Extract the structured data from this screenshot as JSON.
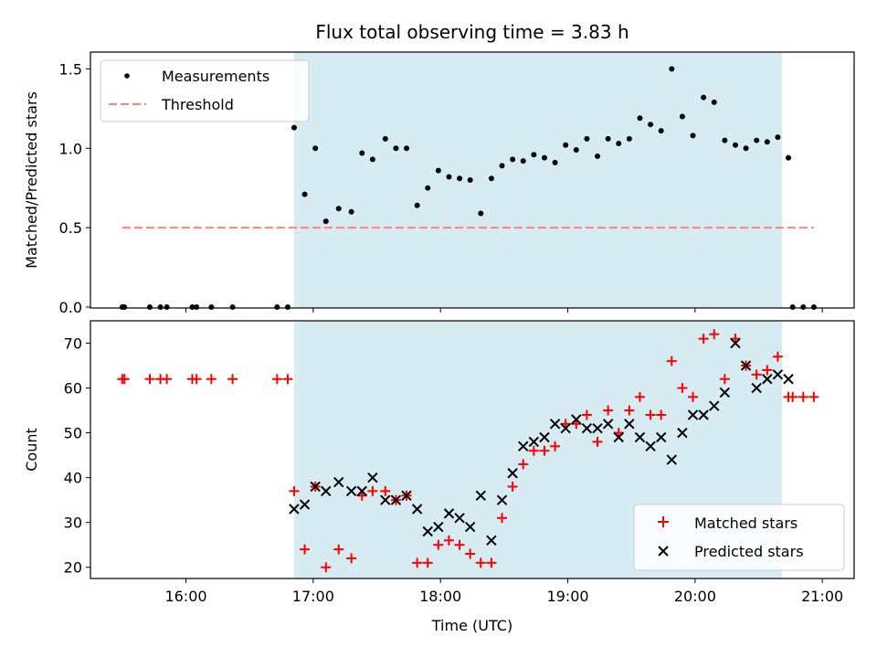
{
  "title": "Flux total observing time = 3.83 h",
  "colors": {
    "shade": "#add8e6",
    "threshold": "#ff7f7f",
    "measurements": "#000000",
    "matched": "#ff0000",
    "predicted": "#000000"
  },
  "chart_data": [
    {
      "type": "scatter",
      "ylabel": "Matched/Predicted stars",
      "ylim": [
        0,
        1.6
      ],
      "yticks": [
        0.0,
        0.5,
        1.0,
        1.5
      ],
      "ytick_labels": [
        "0.0",
        "0.5",
        "1.0",
        "1.5"
      ],
      "xlim": [
        "15:15",
        "21:15"
      ],
      "shaded_interval": [
        "16:51",
        "20:41"
      ],
      "legend": {
        "location": "upper left",
        "labels": [
          "Measurements",
          "Threshold"
        ]
      },
      "threshold": {
        "name": "Threshold",
        "y": 0.5,
        "x_range": [
          "15:30",
          "20:56"
        ]
      },
      "series": [
        {
          "name": "Measurements",
          "marker": "dot",
          "x": [
            "15:30",
            "15:31",
            "15:43",
            "15:48",
            "15:51",
            "16:03",
            "16:05",
            "16:12",
            "16:22",
            "16:43",
            "16:48",
            "16:51",
            "16:56",
            "17:01",
            "17:06",
            "17:12",
            "17:18",
            "17:23",
            "17:28",
            "17:34",
            "17:39",
            "17:44",
            "17:49",
            "17:54",
            "17:59",
            "18:04",
            "18:09",
            "18:14",
            "18:19",
            "18:24",
            "18:29",
            "18:34",
            "18:39",
            "18:44",
            "18:49",
            "18:54",
            "18:59",
            "19:04",
            "19:09",
            "19:14",
            "19:19",
            "19:24",
            "19:29",
            "19:34",
            "19:39",
            "19:44",
            "19:49",
            "19:54",
            "19:59",
            "20:04",
            "20:09",
            "20:14",
            "20:19",
            "20:24",
            "20:29",
            "20:34",
            "20:39",
            "20:44",
            "20:46",
            "20:51",
            "20:56"
          ],
          "y": [
            0,
            0,
            0,
            0,
            0,
            0,
            0,
            0,
            0,
            0,
            0,
            1.13,
            0.71,
            1.0,
            0.54,
            0.62,
            0.6,
            0.97,
            0.93,
            1.06,
            1.0,
            1.0,
            0.64,
            0.75,
            0.86,
            0.82,
            0.81,
            0.8,
            0.59,
            0.81,
            0.89,
            0.93,
            0.92,
            0.96,
            0.94,
            0.91,
            1.02,
            0.99,
            1.06,
            0.95,
            1.06,
            1.03,
            1.06,
            1.19,
            1.15,
            1.11,
            1.5,
            1.2,
            1.08,
            1.32,
            1.29,
            1.05,
            1.02,
            1.0,
            1.05,
            1.04,
            1.07,
            0.94,
            0,
            0,
            0
          ]
        }
      ]
    },
    {
      "type": "scatter",
      "xlabel": "Time (UTC)",
      "ylabel": "Count",
      "ylim": [
        17.5,
        75
      ],
      "yticks": [
        20,
        30,
        40,
        50,
        60,
        70
      ],
      "ytick_labels": [
        "20",
        "30",
        "40",
        "50",
        "60",
        "70"
      ],
      "xlim": [
        "15:15",
        "21:15"
      ],
      "xticks": [
        "16:00",
        "17:00",
        "18:00",
        "19:00",
        "20:00",
        "21:00"
      ],
      "xtick_labels": [
        "16:00",
        "17:00",
        "18:00",
        "19:00",
        "20:00",
        "21:00"
      ],
      "shaded_interval": [
        "16:51",
        "20:41"
      ],
      "legend": {
        "location": "lower right",
        "labels": [
          "Matched stars",
          "Predicted stars"
        ]
      },
      "series": [
        {
          "name": "Matched stars",
          "marker": "plus",
          "x": [
            "15:30",
            "15:31",
            "15:43",
            "15:48",
            "15:51",
            "16:03",
            "16:05",
            "16:12",
            "16:22",
            "16:43",
            "16:48",
            "16:51",
            "16:56",
            "17:01",
            "17:06",
            "17:12",
            "17:18",
            "17:23",
            "17:28",
            "17:34",
            "17:39",
            "17:44",
            "17:49",
            "17:54",
            "17:59",
            "18:04",
            "18:09",
            "18:14",
            "18:19",
            "18:24",
            "18:29",
            "18:34",
            "18:39",
            "18:44",
            "18:49",
            "18:54",
            "18:59",
            "19:04",
            "19:09",
            "19:14",
            "19:19",
            "19:24",
            "19:29",
            "19:34",
            "19:39",
            "19:44",
            "19:49",
            "19:54",
            "19:59",
            "20:04",
            "20:09",
            "20:14",
            "20:19",
            "20:24",
            "20:29",
            "20:34",
            "20:39",
            "20:44",
            "20:46",
            "20:51",
            "20:56"
          ],
          "y": [
            62,
            62,
            62,
            62,
            62,
            62,
            62,
            62,
            62,
            62,
            62,
            37,
            24,
            38,
            20,
            24,
            22,
            36,
            37,
            37,
            35,
            36,
            21,
            21,
            25,
            26,
            25,
            23,
            21,
            21,
            31,
            38,
            43,
            46,
            46,
            47,
            52,
            52,
            54,
            48,
            55,
            50,
            55,
            58,
            54,
            54,
            66,
            60,
            58,
            71,
            72,
            62,
            71,
            65,
            63,
            64,
            67,
            58,
            58,
            58,
            58
          ]
        },
        {
          "name": "Predicted stars",
          "marker": "x",
          "x": [
            "16:51",
            "16:56",
            "17:01",
            "17:06",
            "17:12",
            "17:18",
            "17:23",
            "17:28",
            "17:34",
            "17:39",
            "17:44",
            "17:49",
            "17:54",
            "17:59",
            "18:04",
            "18:09",
            "18:14",
            "18:19",
            "18:24",
            "18:29",
            "18:34",
            "18:39",
            "18:44",
            "18:49",
            "18:54",
            "18:59",
            "19:04",
            "19:09",
            "19:14",
            "19:19",
            "19:24",
            "19:29",
            "19:34",
            "19:39",
            "19:44",
            "19:49",
            "19:54",
            "19:59",
            "20:04",
            "20:09",
            "20:14",
            "20:19",
            "20:24",
            "20:29",
            "20:34",
            "20:39",
            "20:44"
          ],
          "y": [
            33,
            34,
            38,
            37,
            39,
            37,
            37,
            40,
            35,
            35,
            36,
            33,
            28,
            29,
            32,
            31,
            29,
            36,
            26,
            35,
            41,
            47,
            48,
            49,
            52,
            51,
            53,
            51,
            51,
            52,
            49,
            52,
            49,
            47,
            49,
            44,
            50,
            54,
            54,
            56,
            59,
            70,
            65,
            60,
            62,
            63,
            62
          ]
        }
      ]
    }
  ]
}
